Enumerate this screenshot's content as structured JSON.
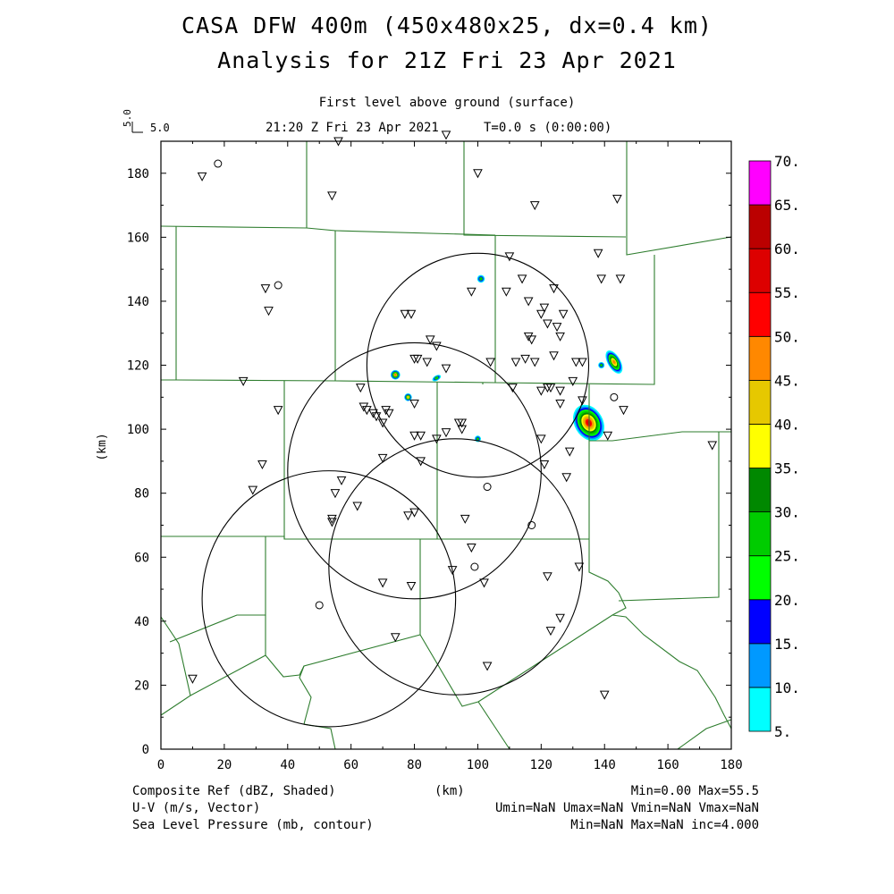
{
  "header": {
    "title_line1": "CASA DFW 400m (450x480x25, dx=0.4 km)",
    "title_line2": "Analysis for 21Z Fri 23 Apr 2021",
    "level_label": "First level above ground (surface)",
    "time_label": "21:20 Z Fri 23 Apr 2021",
    "t_label": "T=0.0 s (0:00:00)",
    "vector_ref_vertical": "5.0",
    "vector_ref_horizontal": "5.0"
  },
  "footer": {
    "field1": "Composite Ref (dBZ, Shaded)",
    "field2": "U-V (m/s, Vector)",
    "field3": "Sea Level Pressure (mb, contour)",
    "xunit": "(km)",
    "stats1": "Min=0.00 Max=55.5",
    "stats2": "Umin=NaN Umax=NaN Vmin=NaN Vmax=NaN",
    "stats3": "Min=NaN Max=NaN inc=4.000"
  },
  "chart_data": {
    "type": "heatmap",
    "ylabel": "(km)",
    "xlim": [
      0,
      180
    ],
    "ylim": [
      0,
      190
    ],
    "xticks": [
      0,
      20,
      40,
      60,
      80,
      100,
      120,
      140,
      160,
      180
    ],
    "yticks": [
      0,
      20,
      40,
      60,
      80,
      100,
      120,
      140,
      160,
      180
    ],
    "colorbar": {
      "levels": [
        "5.",
        "10.",
        "15.",
        "20.",
        "25.",
        "30.",
        "35.",
        "40.",
        "45.",
        "50.",
        "55.",
        "60.",
        "65.",
        "70."
      ],
      "colors": [
        "#00ffff",
        "#0099ff",
        "#0000ff",
        "#00ff00",
        "#00cc00",
        "#008800",
        "#ffff00",
        "#e6c800",
        "#ff8800",
        "#ff0000",
        "#dd0000",
        "#bb0000",
        "#ff00ff"
      ]
    },
    "radar_rings": [
      {
        "cx": 100,
        "cy": 120,
        "r": 35
      },
      {
        "cx": 80,
        "cy": 87,
        "r": 40
      },
      {
        "cx": 93,
        "cy": 57,
        "r": 40
      },
      {
        "cx": 53,
        "cy": 47,
        "r": 40
      }
    ],
    "echoes": [
      {
        "x": 135,
        "y": 102,
        "rx": 4.5,
        "ry": 6,
        "max": 55
      },
      {
        "x": 143,
        "y": 121,
        "rx": 2,
        "ry": 4,
        "max": 45
      },
      {
        "x": 139,
        "y": 120,
        "rx": 1,
        "ry": 1,
        "max": 25
      },
      {
        "x": 101,
        "y": 147,
        "rx": 1.2,
        "ry": 1.2,
        "max": 25
      },
      {
        "x": 74,
        "y": 117,
        "rx": 1.5,
        "ry": 1.5,
        "max": 45
      },
      {
        "x": 78,
        "y": 110,
        "rx": 1.2,
        "ry": 1.2,
        "max": 40
      },
      {
        "x": 87,
        "y": 116,
        "rx": 1.5,
        "ry": 0.8,
        "max": 25
      },
      {
        "x": 100,
        "y": 97,
        "rx": 1,
        "ry": 1,
        "max": 25
      }
    ],
    "stations_triangle": [
      [
        13,
        179
      ],
      [
        56,
        190
      ],
      [
        90,
        192
      ],
      [
        54,
        173
      ],
      [
        100,
        180
      ],
      [
        118,
        170
      ],
      [
        144,
        172
      ],
      [
        33,
        144
      ],
      [
        34,
        137
      ],
      [
        110,
        154
      ],
      [
        114,
        147
      ],
      [
        109,
        143
      ],
      [
        98,
        143
      ],
      [
        77,
        136
      ],
      [
        79,
        136
      ],
      [
        138,
        155
      ],
      [
        139,
        147
      ],
      [
        145,
        147
      ],
      [
        124,
        144
      ],
      [
        116,
        140
      ],
      [
        127,
        136
      ],
      [
        121,
        138
      ],
      [
        125,
        132
      ],
      [
        120,
        136
      ],
      [
        122,
        133
      ],
      [
        116,
        129
      ],
      [
        117,
        128
      ],
      [
        126,
        129
      ],
      [
        131,
        121
      ],
      [
        133,
        121
      ],
      [
        118,
        121
      ],
      [
        112,
        121
      ],
      [
        115,
        122
      ],
      [
        104,
        121
      ],
      [
        124,
        123
      ],
      [
        111,
        113
      ],
      [
        123,
        113
      ],
      [
        122,
        113
      ],
      [
        126,
        112
      ],
      [
        120,
        112
      ],
      [
        130,
        115
      ],
      [
        126,
        108
      ],
      [
        133,
        109
      ],
      [
        26,
        115
      ],
      [
        37,
        106
      ],
      [
        63,
        113
      ],
      [
        64,
        107
      ],
      [
        65,
        106
      ],
      [
        67,
        105
      ],
      [
        68,
        104
      ],
      [
        71,
        106
      ],
      [
        72,
        105
      ],
      [
        70,
        102
      ],
      [
        80,
        122
      ],
      [
        81,
        122
      ],
      [
        85,
        128
      ],
      [
        84,
        121
      ],
      [
        87,
        126
      ],
      [
        80,
        108
      ],
      [
        90,
        119
      ],
      [
        90,
        99
      ],
      [
        94,
        102
      ],
      [
        95,
        100
      ],
      [
        95,
        102
      ],
      [
        80,
        98
      ],
      [
        82,
        98
      ],
      [
        87,
        97
      ],
      [
        82,
        90
      ],
      [
        70,
        91
      ],
      [
        55,
        80
      ],
      [
        57,
        84
      ],
      [
        62,
        76
      ],
      [
        78,
        73
      ],
      [
        80,
        74
      ],
      [
        54,
        71
      ],
      [
        54,
        72
      ],
      [
        96,
        72
      ],
      [
        98,
        63
      ],
      [
        120,
        97
      ],
      [
        121,
        89
      ],
      [
        129,
        93
      ],
      [
        128,
        85
      ],
      [
        141,
        98
      ],
      [
        146,
        106
      ],
      [
        32,
        89
      ],
      [
        29,
        81
      ],
      [
        122,
        54
      ],
      [
        132,
        57
      ],
      [
        126,
        41
      ],
      [
        123,
        37
      ],
      [
        102,
        52
      ],
      [
        92,
        56
      ],
      [
        70,
        52
      ],
      [
        79,
        51
      ],
      [
        74,
        35
      ],
      [
        103,
        26
      ],
      [
        140,
        17
      ],
      [
        10,
        22
      ],
      [
        174,
        95
      ]
    ],
    "stations_circle": [
      [
        18,
        183
      ],
      [
        37,
        145
      ],
      [
        143,
        110
      ],
      [
        103,
        82
      ],
      [
        117,
        70
      ],
      [
        99,
        57
      ],
      [
        50,
        45
      ]
    ]
  }
}
